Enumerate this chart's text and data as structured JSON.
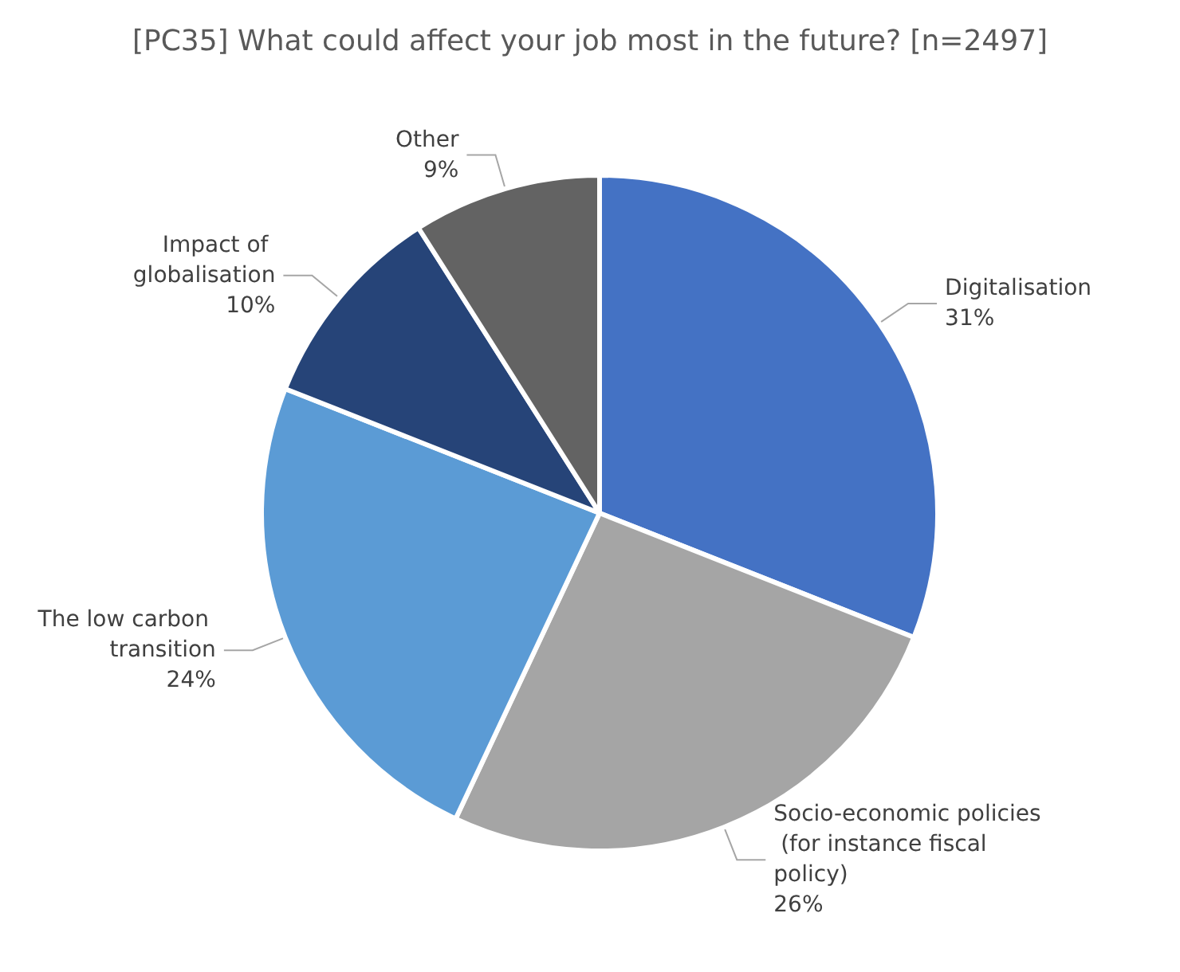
{
  "chart_data": {
    "type": "pie",
    "title": "[PC35] What could affect your job most in the future? [n=2497]",
    "categories": [
      "Digitalisation",
      "Socio-economic policies (for instance fiscal policy)",
      "The low carbon transition",
      "Impact of globalisation",
      "Other"
    ],
    "values": [
      31,
      26,
      24,
      10,
      9
    ],
    "value_labels": [
      "31%",
      "26%",
      "24%",
      "10%",
      "9%"
    ],
    "colors": [
      "#4472c4",
      "#a5a5a5",
      "#5b9bd5",
      "#264478",
      "#636363"
    ],
    "legend": false
  }
}
